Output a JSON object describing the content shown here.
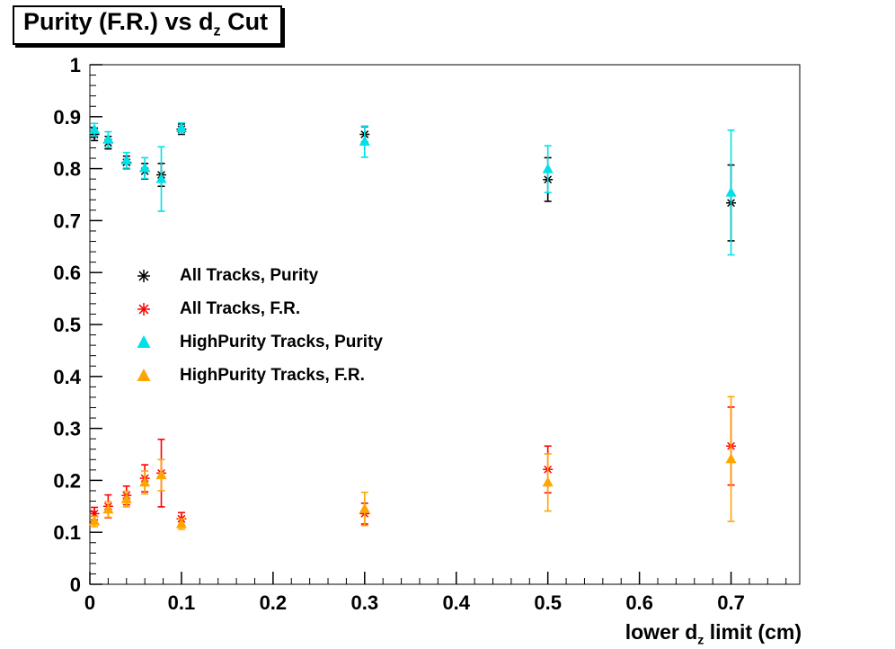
{
  "chart_data": {
    "type": "scatter",
    "title": {
      "pre": "Purity (F.R.) vs d",
      "sub": "z",
      "post": " Cut",
      "text": "Purity (F.R.) vs d_z Cut"
    },
    "xlabel": {
      "pre": "lower d",
      "sub": "z",
      "post": " limit (cm)",
      "text": "lower d_z limit (cm)"
    },
    "ylabel": "",
    "xlim": [
      0,
      0.775
    ],
    "ylim": [
      0,
      1
    ],
    "grid": false,
    "legend_position": "middle-left",
    "x_ticks": {
      "values": [
        0,
        0.1,
        0.2,
        0.3,
        0.4,
        0.5,
        0.6,
        0.7
      ],
      "labels": [
        "0",
        "0.1",
        "0.2",
        "0.3",
        "0.4",
        "0.5",
        "0.6",
        "0.7"
      ],
      "minor_per_major": 5
    },
    "y_ticks": {
      "values": [
        0,
        0.1,
        0.2,
        0.3,
        0.4,
        0.5,
        0.6,
        0.7,
        0.8,
        0.9,
        1
      ],
      "labels": [
        "0",
        "0.1",
        "0.2",
        "0.3",
        "0.4",
        "0.5",
        "0.6",
        "0.7",
        "0.8",
        "0.9",
        "1"
      ],
      "minor_per_major": 5
    },
    "x": [
      0.005,
      0.02,
      0.04,
      0.06,
      0.078,
      0.1,
      0.3,
      0.5,
      0.7
    ],
    "series": [
      {
        "name": "All Tracks, Purity",
        "marker": "asterisk",
        "color": "#000000",
        "y": [
          0.866,
          0.85,
          0.812,
          0.795,
          0.788,
          0.876,
          0.866,
          0.779,
          0.734
        ],
        "yerr": [
          0.012,
          0.012,
          0.012,
          0.015,
          0.022,
          0.01,
          0.015,
          0.042,
          0.073
        ]
      },
      {
        "name": "All Tracks, F.R.",
        "marker": "asterisk",
        "color": "#ff0000",
        "y": [
          0.136,
          0.15,
          0.171,
          0.204,
          0.214,
          0.126,
          0.136,
          0.221,
          0.266
        ],
        "yerr": [
          0.012,
          0.022,
          0.018,
          0.026,
          0.065,
          0.012,
          0.02,
          0.045,
          0.075
        ]
      },
      {
        "name": "HighPurity Tracks, Purity",
        "marker": "triangle-up",
        "color": "#00e0e8",
        "y": [
          0.875,
          0.856,
          0.816,
          0.801,
          0.78,
          0.878,
          0.852,
          0.799,
          0.754
        ],
        "yerr": [
          0.012,
          0.015,
          0.015,
          0.02,
          0.062,
          0.01,
          0.03,
          0.045,
          0.12
        ]
      },
      {
        "name": "HighPurity Tracks, F.R.",
        "marker": "triangle-up",
        "color": "#ffa500",
        "y": [
          0.121,
          0.144,
          0.164,
          0.196,
          0.21,
          0.116,
          0.145,
          0.196,
          0.241
        ],
        "yerr": [
          0.01,
          0.015,
          0.015,
          0.022,
          0.03,
          0.01,
          0.032,
          0.055,
          0.12
        ]
      }
    ]
  }
}
